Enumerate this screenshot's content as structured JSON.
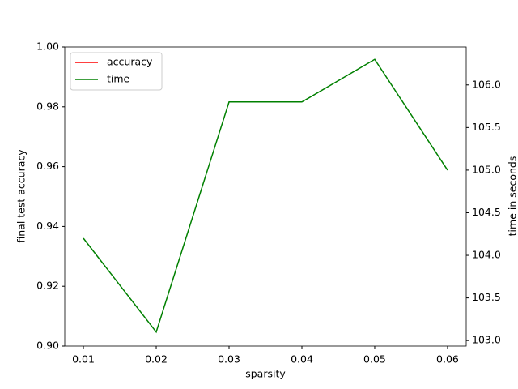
{
  "chart_data": {
    "type": "line",
    "x": [
      0.01,
      0.02,
      0.03,
      0.04,
      0.05,
      0.06
    ],
    "series": [
      {
        "name": "accuracy",
        "color": "#ff0000",
        "values": [
          null,
          null,
          null,
          null,
          null,
          null
        ]
      },
      {
        "name": "time",
        "color": "#008000",
        "axis": "y2",
        "values": [
          104.2,
          103.1,
          105.8,
          105.8,
          106.3,
          105.0
        ]
      }
    ],
    "xlabel": "sparsity",
    "ylabel": "final test accuracy",
    "y2label": "time in seconds",
    "xlim": [
      0.00744,
      0.06256
    ],
    "xticks": [
      0.01,
      0.02,
      0.03,
      0.04,
      0.05,
      0.06
    ],
    "ylim": [
      0.9,
      1.0
    ],
    "yticks": [
      {
        "value": 0.9,
        "label": "0.90"
      },
      0.92,
      0.94,
      0.96,
      0.98,
      {
        "value": 1.0,
        "label": "1.00"
      }
    ],
    "y2lim": [
      102.935,
      106.445
    ],
    "y2ticks": [
      {
        "value": 103,
        "label": "103.0"
      },
      103.5,
      {
        "value": 104,
        "label": "104.0"
      },
      104.5,
      {
        "value": 105,
        "label": "105.0"
      },
      105.5,
      {
        "value": 106,
        "label": "106.0"
      }
    ],
    "legend": "upper left",
    "grid": false
  }
}
